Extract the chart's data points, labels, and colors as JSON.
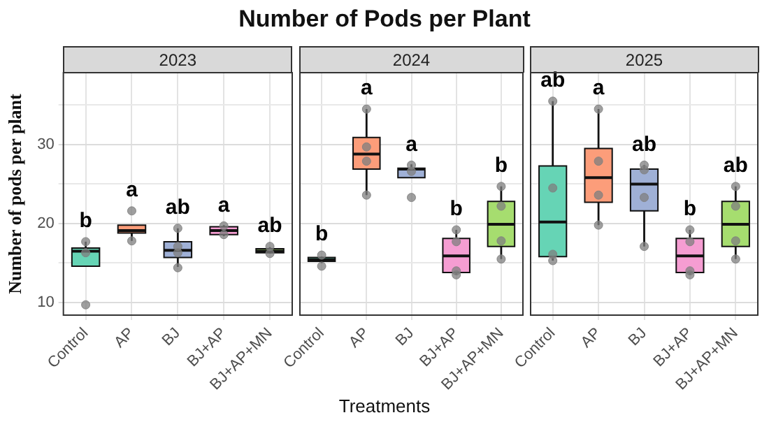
{
  "chart_data": [
    {
      "type": "box",
      "title": "Number of Pods per Plant",
      "subtitle": "2023",
      "ylabel": "Number of pods per plant",
      "categories": [
        "Control",
        "AP",
        "BJ",
        "BJ+AP",
        "BJ+AP+MN"
      ],
      "ylim": [
        8.3,
        39.2
      ],
      "yticks": [
        10,
        {
          "value": 15,
          "label": null
        },
        20,
        {
          "value": 25,
          "label": null
        },
        30,
        {
          "value": 35,
          "label": null
        }
      ],
      "grid": true,
      "legend": false,
      "marker": "circle",
      "series": [
        {
          "type": "box",
          "colors": [
            "#66d4b5",
            "#fc9d7a",
            "#9fb0d6",
            "#f59dd2",
            "#a6dd6f"
          ],
          "boxes": [
            {
              "low": 14.6,
              "q1": 14.6,
              "median": 16.5,
              "q3": 16.9,
              "high": 17.7
            },
            {
              "low": 17.8,
              "q1": 18.8,
              "median": 19.1,
              "q3": 19.8,
              "high": 19.8
            },
            {
              "low": 14.5,
              "q1": 15.7,
              "median": 16.6,
              "q3": 17.7,
              "high": 19.4
            },
            {
              "low": 18.4,
              "q1": 18.6,
              "median": 19.1,
              "q3": 19.6,
              "high": 19.8
            },
            {
              "low": 16.2,
              "q1": 16.3,
              "median": 16.5,
              "q3": 16.8,
              "high": 17.0
            }
          ]
        },
        {
          "type": "scatter",
          "color": "#7f7f7f",
          "x": [
            "Control",
            "Control",
            "Control",
            "AP",
            "AP",
            "BJ",
            "BJ",
            "BJ",
            "BJ",
            "BJ+AP",
            "BJ+AP",
            "BJ+AP+MN",
            "BJ+AP+MN"
          ],
          "values": [
            17.7,
            16.3,
            9.7,
            21.6,
            17.8,
            19.4,
            17.1,
            16.3,
            14.4,
            19.7,
            18.6,
            17.1,
            16.2
          ]
        }
      ],
      "annotations": [
        "b",
        "a",
        "ab",
        "a",
        "ab"
      ]
    },
    {
      "type": "box",
      "subtitle": "2024",
      "xlabel": "Treatments",
      "categories": [
        "Control",
        "AP",
        "BJ",
        "BJ+AP",
        "BJ+AP+MN"
      ],
      "ylim": [
        8.3,
        39.2
      ],
      "yticks": [
        10,
        {
          "value": 15,
          "label": null
        },
        20,
        {
          "value": 25,
          "label": null
        },
        30,
        {
          "value": 35,
          "label": null
        }
      ],
      "tick_labels": "x",
      "grid": true,
      "legend": false,
      "marker": "circle",
      "series": [
        {
          "type": "box",
          "colors": [
            "#66d4b5",
            "#fc9d7a",
            "#9fb0d6",
            "#f59dd2",
            "#a6dd6f"
          ],
          "boxes": [
            {
              "low": 15.0,
              "q1": 15.2,
              "median": 15.4,
              "q3": 15.7,
              "high": 15.8
            },
            {
              "low": 23.6,
              "q1": 26.9,
              "median": 28.8,
              "q3": 30.9,
              "high": 34.5
            },
            {
              "low": 25.8,
              "q1": 25.8,
              "median": 26.9,
              "q3": 27.0,
              "high": 27.5
            },
            {
              "low": 13.5,
              "q1": 13.8,
              "median": 15.9,
              "q3": 18.1,
              "high": 19.2
            },
            {
              "low": 15.5,
              "q1": 17.1,
              "median": 19.9,
              "q3": 22.8,
              "high": 24.7
            }
          ]
        },
        {
          "type": "scatter",
          "color": "#7f7f7f",
          "x": [
            "Control",
            "Control",
            "AP",
            "AP",
            "AP",
            "AP",
            "BJ",
            "BJ",
            "BJ",
            "BJ+AP",
            "BJ+AP",
            "BJ+AP",
            "BJ+AP",
            "BJ+AP+MN",
            "BJ+AP+MN",
            "BJ+AP+MN",
            "BJ+AP+MN"
          ],
          "values": [
            16.0,
            14.6,
            34.5,
            29.7,
            27.9,
            23.6,
            27.4,
            26.6,
            23.3,
            19.2,
            17.7,
            14.0,
            13.5,
            24.7,
            22.2,
            17.8,
            15.5
          ]
        }
      ],
      "annotations": [
        "b",
        "a",
        "a",
        "b",
        "b"
      ]
    },
    {
      "type": "box",
      "subtitle": "2025",
      "categories": [
        "Control",
        "AP",
        "BJ",
        "BJ+AP",
        "BJ+AP+MN"
      ],
      "ylim": [
        8.3,
        39.2
      ],
      "yticks": [
        10,
        {
          "value": 15,
          "label": null
        },
        20,
        {
          "value": 25,
          "label": null
        },
        30,
        {
          "value": 35,
          "label": null
        }
      ],
      "tick_labels": "x",
      "grid": true,
      "legend": false,
      "marker": "circle",
      "series": [
        {
          "type": "box",
          "colors": [
            "#66d4b5",
            "#fc9d7a",
            "#9fb0d6",
            "#f59dd2",
            "#a6dd6f"
          ],
          "boxes": [
            {
              "low": 15.3,
              "q1": 15.8,
              "median": 20.2,
              "q3": 27.3,
              "high": 35.5
            },
            {
              "low": 19.8,
              "q1": 22.7,
              "median": 25.8,
              "q3": 29.5,
              "high": 34.5
            },
            {
              "low": 17.1,
              "q1": 21.6,
              "median": 25.0,
              "q3": 26.9,
              "high": 27.4
            },
            {
              "low": 13.5,
              "q1": 13.8,
              "median": 15.9,
              "q3": 18.1,
              "high": 19.2
            },
            {
              "low": 15.5,
              "q1": 17.1,
              "median": 19.9,
              "q3": 22.8,
              "high": 24.7
            }
          ]
        },
        {
          "type": "scatter",
          "color": "#7f7f7f",
          "x": [
            "Control",
            "Control",
            "Control",
            "Control",
            "AP",
            "AP",
            "AP",
            "AP",
            "BJ",
            "BJ",
            "BJ",
            "BJ",
            "BJ+AP",
            "BJ+AP",
            "BJ+AP",
            "BJ+AP",
            "BJ+AP+MN",
            "BJ+AP+MN",
            "BJ+AP+MN",
            "BJ+AP+MN"
          ],
          "values": [
            35.5,
            24.5,
            16.1,
            15.3,
            34.5,
            27.9,
            23.6,
            19.8,
            27.4,
            26.8,
            23.3,
            17.1,
            19.2,
            17.7,
            14.0,
            13.5,
            24.7,
            22.2,
            17.8,
            15.5
          ]
        }
      ],
      "annotations": [
        "ab",
        "a",
        "ab",
        "b",
        "ab"
      ]
    }
  ]
}
